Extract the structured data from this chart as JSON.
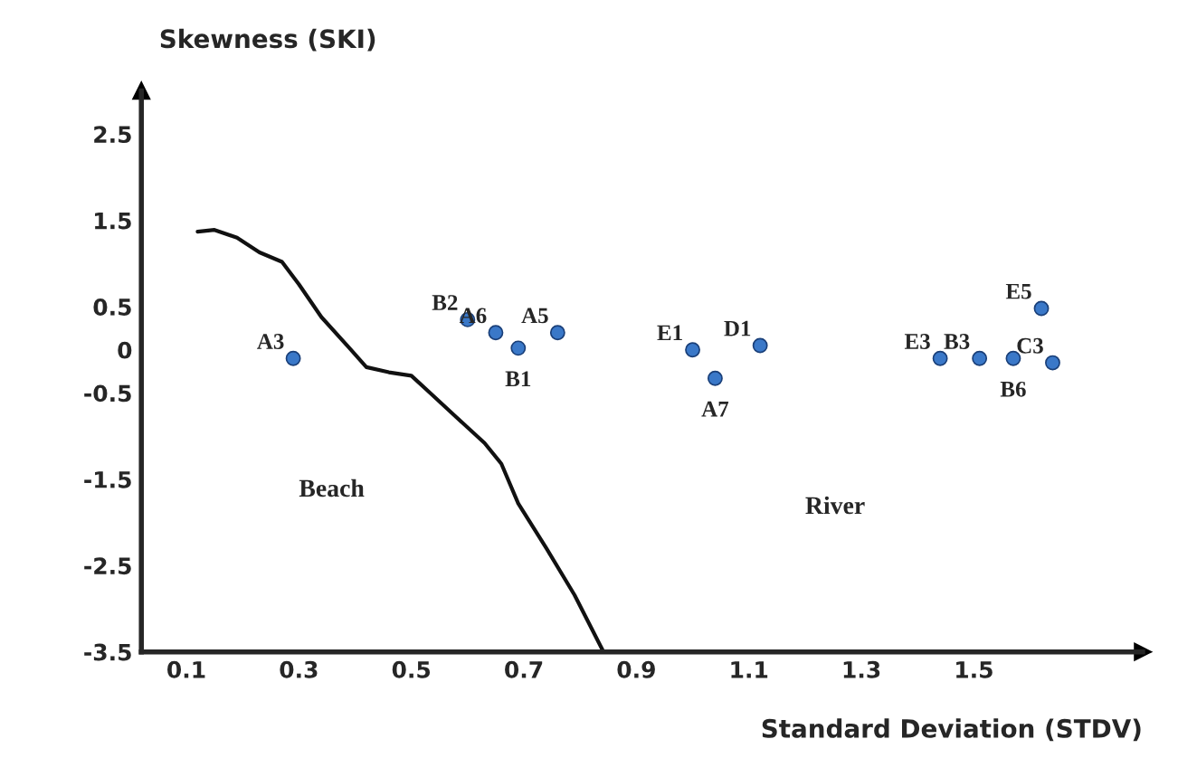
{
  "chart_data": {
    "type": "scatter",
    "xlabel": "Standard Deviation (STDV)",
    "ylabel": "Skewness (SKI)",
    "xlim": [
      0.02,
      1.8
    ],
    "ylim": [
      -3.5,
      3.0
    ],
    "xticks": [
      0.1,
      0.3,
      0.5,
      0.7,
      0.9,
      1.1,
      1.3,
      1.5
    ],
    "yticks": [
      2.5,
      1.5,
      0.5,
      0,
      -0.5,
      -1.5,
      -2.5,
      -3.5
    ],
    "grid": false,
    "marker": "circle",
    "series": [
      {
        "color": "#3a78c8",
        "x": [
          0.29,
          0.6,
          0.65,
          0.69,
          0.76,
          1.0,
          1.04,
          1.12,
          1.44,
          1.51,
          1.57,
          1.64,
          1.62
        ],
        "values": [
          -0.1,
          0.35,
          0.2,
          0.02,
          0.2,
          0.0,
          -0.33,
          0.05,
          -0.1,
          -0.1,
          -0.1,
          -0.15,
          0.48
        ]
      },
      {
        "type": "line",
        "color": "#111111",
        "marker": "none",
        "line_style": "solid",
        "x": [
          0.12,
          0.15,
          0.19,
          0.23,
          0.27,
          0.3,
          0.34,
          0.39,
          0.42,
          0.46,
          0.5,
          0.53,
          0.58,
          0.63,
          0.66,
          0.69,
          0.74,
          0.79,
          0.84
        ],
        "values": [
          1.37,
          1.39,
          1.3,
          1.13,
          1.02,
          0.76,
          0.38,
          0.02,
          -0.2,
          -0.26,
          -0.3,
          -0.48,
          -0.78,
          -1.08,
          -1.32,
          -1.78,
          -2.3,
          -2.84,
          -3.48
        ]
      }
    ],
    "annotations": [
      {
        "text": "A3",
        "x": 0.29,
        "y": -0.1
      },
      {
        "text": "B2",
        "x": 0.6,
        "y": 0.35
      },
      {
        "text": "A6",
        "x": 0.65,
        "y": 0.2
      },
      {
        "text": "B1",
        "x": 0.69,
        "y": 0.02
      },
      {
        "text": "A5",
        "x": 0.76,
        "y": 0.2
      },
      {
        "text": "E1",
        "x": 1.0,
        "y": 0.0
      },
      {
        "text": "A7",
        "x": 1.04,
        "y": -0.33
      },
      {
        "text": "D1",
        "x": 1.12,
        "y": 0.05
      },
      {
        "text": "E3",
        "x": 1.44,
        "y": -0.1
      },
      {
        "text": "B3",
        "x": 1.51,
        "y": -0.1
      },
      {
        "text": "B6",
        "x": 1.57,
        "y": -0.1
      },
      {
        "text": "C3",
        "x": 1.64,
        "y": -0.15
      },
      {
        "text": "E5",
        "x": 1.62,
        "y": 0.48
      },
      "Beach",
      "River"
    ]
  }
}
